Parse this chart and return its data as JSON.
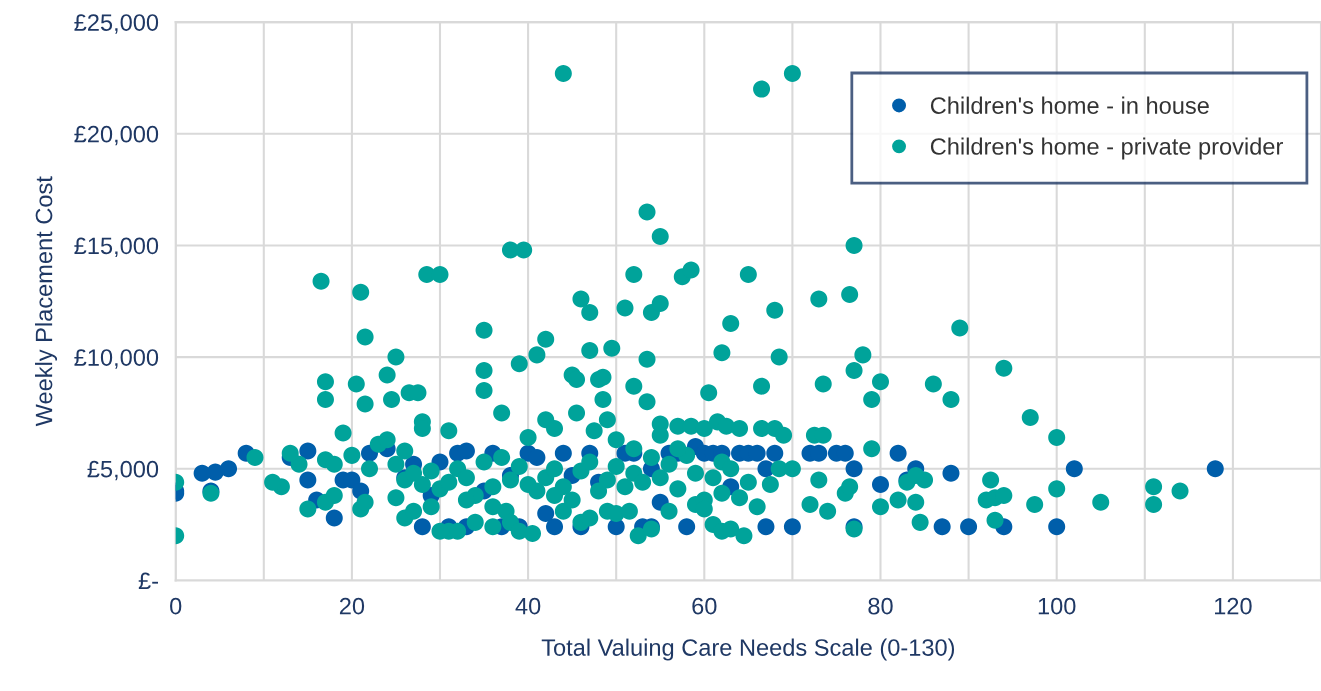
{
  "chart_data": {
    "type": "scatter",
    "xlabel": "Total Valuing Care Needs Scale (0-130)",
    "ylabel": "Weekly Placement Cost",
    "xlim": [
      0,
      130
    ],
    "xticks": [
      0,
      {
        "value": 10,
        "label": null
      },
      20,
      {
        "value": 30,
        "label": null
      },
      40,
      {
        "value": 50,
        "label": null
      },
      60,
      {
        "value": 70,
        "label": null
      },
      80,
      {
        "value": 90,
        "label": null
      },
      100,
      {
        "value": 110,
        "label": null
      },
      120,
      {
        "value": 130,
        "label": null
      }
    ],
    "ylim": [
      0,
      25000
    ],
    "yticks": [
      {
        "value": 0,
        "label": "£-"
      },
      {
        "value": 5000,
        "label": "£5,000"
      },
      {
        "value": 10000,
        "label": "£10,000"
      },
      {
        "value": 15000,
        "label": "£15,000"
      },
      {
        "value": 20000,
        "label": "£20,000"
      },
      {
        "value": 25000,
        "label": "£25,000"
      }
    ],
    "grid": true,
    "legend": "top right",
    "marker": "circle",
    "series": [
      {
        "name": "Children's home - in house",
        "color": "#005eaa",
        "x": [
          0,
          0,
          3,
          4,
          4.5,
          6,
          8,
          13,
          15,
          15,
          16,
          18,
          19,
          20,
          21,
          22,
          24,
          26,
          27,
          28,
          29,
          30,
          31,
          32,
          33,
          33,
          35,
          36,
          37,
          38,
          39,
          40,
          41,
          42,
          43,
          44,
          45,
          46,
          47,
          48,
          50,
          51,
          52,
          53,
          54,
          54,
          55,
          56,
          57,
          58,
          59,
          60,
          61,
          62,
          63,
          64,
          65,
          66,
          67,
          67,
          68,
          70,
          72,
          73,
          75,
          76,
          77,
          77,
          80,
          82,
          83,
          84,
          87,
          88,
          90,
          94,
          100,
          102,
          118
        ],
        "values": [
          3900,
          4000,
          4800,
          4000,
          4850,
          5000,
          5700,
          5500,
          5800,
          4500,
          3600,
          2800,
          4500,
          4500,
          4000,
          5700,
          5900,
          4600,
          5200,
          2400,
          3800,
          5300,
          2400,
          5700,
          5800,
          2400,
          4000,
          5700,
          2400,
          4700,
          2400,
          5700,
          5500,
          3000,
          2400,
          5700,
          4700,
          2400,
          5700,
          4400,
          2400,
          5700,
          5700,
          2400,
          2400,
          5000,
          3500,
          5700,
          5700,
          2400,
          6000,
          5700,
          5700,
          5700,
          4200,
          5700,
          5700,
          5700,
          2400,
          5000,
          5700,
          2400,
          5700,
          5700,
          5700,
          5700,
          5000,
          2400,
          4300,
          5700,
          4500,
          5000,
          2400,
          4800,
          2400,
          2400,
          2400,
          5000,
          5000
        ]
      },
      {
        "name": "Children's home - private provider",
        "color": "#00a39a",
        "x": [
          44,
          66.5,
          70,
          53.5,
          55,
          38,
          39.5,
          77,
          16.5,
          28.5,
          30,
          52,
          65,
          57.5,
          58.5,
          21,
          46,
          47,
          51,
          54,
          55,
          73,
          76.5,
          68,
          89,
          21.5,
          35,
          42,
          25,
          41,
          47,
          49.5,
          53.5,
          62,
          63,
          68.5,
          78,
          24,
          35,
          39,
          45,
          45.5,
          48,
          48.5,
          52,
          60.5,
          66.5,
          73.5,
          77,
          80,
          86,
          94,
          17,
          17,
          20.5,
          21.5,
          24.5,
          26.5,
          27.5,
          28,
          35,
          48.5,
          53.5,
          55,
          45.5,
          37,
          79,
          88,
          97,
          100,
          19,
          23,
          24,
          42,
          43,
          28,
          31,
          49,
          47.5,
          57,
          58.5,
          60,
          61.5,
          62.5,
          64,
          66.5,
          68,
          69,
          72.5,
          73.5,
          79,
          17,
          18,
          20,
          14,
          13,
          12,
          11,
          9,
          0,
          0,
          4,
          15,
          17,
          18,
          21,
          21.5,
          22,
          25,
          26,
          27,
          31,
          30,
          32,
          34,
          36,
          37.5,
          38,
          39,
          40.5,
          44,
          46,
          47,
          49,
          50,
          51.5,
          52.5,
          54,
          56,
          59,
          61,
          62,
          63,
          64.5,
          66,
          67.5,
          68.5,
          70,
          72,
          73,
          74,
          76,
          76.5,
          77,
          80,
          82,
          83,
          84,
          84.5,
          92,
          92.5,
          93,
          94,
          93,
          97.5,
          100,
          105,
          111,
          111,
          114,
          85,
          84,
          25,
          26,
          27,
          28,
          29,
          30,
          31,
          32,
          33,
          34,
          35,
          36,
          37,
          38,
          39,
          40,
          41,
          42,
          43,
          44,
          45,
          46,
          47,
          48,
          49,
          50,
          51,
          52,
          53,
          54,
          55,
          56,
          57,
          58,
          59,
          60,
          61,
          62,
          63,
          64,
          65,
          26,
          29,
          33,
          36,
          40,
          43,
          50,
          52,
          55,
          57,
          60,
          62
        ],
        "values": [
          22700,
          22000,
          22700,
          16500,
          15400,
          14800,
          14800,
          15000,
          13400,
          13700,
          13700,
          13700,
          13700,
          13600,
          13900,
          12900,
          12600,
          12000,
          12200,
          12000,
          12400,
          12600,
          12800,
          12100,
          11300,
          10900,
          11200,
          10800,
          10000,
          10100,
          10300,
          10400,
          9900,
          10200,
          11500,
          10000,
          10100,
          9200,
          9400,
          9700,
          9200,
          9000,
          9000,
          9100,
          8700,
          8400,
          8700,
          8800,
          9400,
          8900,
          8800,
          9500,
          8900,
          8100,
          8800,
          7900,
          8100,
          8400,
          8400,
          7100,
          8500,
          8100,
          8000,
          7000,
          7500,
          7500,
          8100,
          8100,
          7300,
          6400,
          6600,
          6100,
          6300,
          7200,
          6800,
          6800,
          6700,
          7200,
          6700,
          6900,
          6900,
          6800,
          7100,
          6900,
          6800,
          6800,
          6800,
          6500,
          6500,
          6500,
          5900,
          5400,
          5200,
          5600,
          5200,
          5700,
          4200,
          4400,
          5500,
          4400,
          2000,
          3900,
          3200,
          3500,
          3800,
          3200,
          3500,
          5000,
          3700,
          2800,
          3100,
          2200,
          2200,
          2200,
          2600,
          2400,
          3100,
          2600,
          2200,
          2100,
          3100,
          2600,
          2800,
          3100,
          3000,
          3100,
          2000,
          2300,
          3100,
          3400,
          2500,
          2200,
          2300,
          2000,
          3300,
          4300,
          5000,
          5000,
          3400,
          4500,
          3100,
          3900,
          4200,
          2300,
          3300,
          3600,
          4400,
          3500,
          2600,
          3600,
          4500,
          3700,
          3800,
          2700,
          3400,
          4100,
          3500,
          4200,
          3400,
          4000,
          4500,
          4700,
          5200,
          4500,
          4800,
          4300,
          4900,
          4100,
          4400,
          5000,
          4600,
          3800,
          5300,
          4200,
          5500,
          4500,
          5100,
          4300,
          4000,
          4600,
          5000,
          4200,
          3600,
          4900,
          5300,
          4000,
          4500,
          5100,
          4200,
          4800,
          4400,
          5500,
          4600,
          5200,
          4100,
          5600,
          4800,
          3600,
          4600,
          5300,
          5000,
          3700,
          4400,
          5800,
          3300,
          3600,
          3300,
          6400,
          3800,
          6300,
          5900,
          6500,
          5900,
          3200,
          3900
        ]
      }
    ]
  }
}
